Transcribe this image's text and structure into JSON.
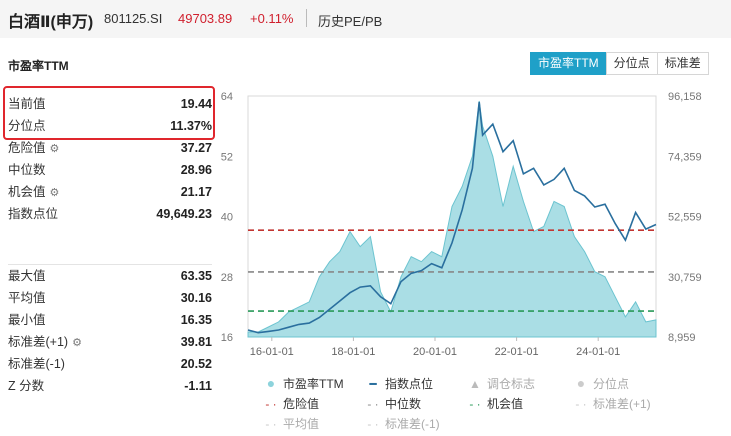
{
  "header": {
    "title": "白酒Ⅱ(申万)",
    "code": "801125.SI",
    "price": "49703.89",
    "change": "+0.11%",
    "mode": "历史PE/PB"
  },
  "chart_title": "市盈率TTM",
  "tabs": [
    "市盈率TTM",
    "分位点",
    "标准差"
  ],
  "stats_top": [
    {
      "label": "当前值",
      "value": "19.44"
    },
    {
      "label": "分位点",
      "value": "11.37%"
    },
    {
      "label": "危险值",
      "value": "37.27",
      "icon": "gear-icon"
    },
    {
      "label": "中位数",
      "value": "28.96"
    },
    {
      "label": "机会值",
      "value": "21.17",
      "icon": "gear-icon"
    },
    {
      "label": "指数点位",
      "value": "49,649.23"
    }
  ],
  "stats_bottom": [
    {
      "label": "最大值",
      "value": "63.35"
    },
    {
      "label": "平均值",
      "value": "30.16"
    },
    {
      "label": "最小值",
      "value": "16.35"
    },
    {
      "label": "标准差(+1)",
      "value": "39.81",
      "icon": "gear-icon"
    },
    {
      "label": "标准差(-1)",
      "value": "20.52"
    },
    {
      "label": "Z 分数",
      "value": "-1.11"
    }
  ],
  "legend": [
    {
      "label": "市盈率TTM",
      "marker": "circle",
      "color": "#8dd3dc",
      "active": true
    },
    {
      "label": "指数点位",
      "marker": "line",
      "color": "#2a6f9e",
      "active": true
    },
    {
      "label": "调仓标志",
      "marker": "triangle",
      "color": "#bbbbbb",
      "active": false
    },
    {
      "label": "分位点",
      "marker": "circle",
      "color": "#cccccc",
      "active": false
    },
    {
      "label": "危险值",
      "marker": "dash",
      "color": "#c23531",
      "active": true
    },
    {
      "label": "中位数",
      "marker": "dash",
      "color": "#888888",
      "active": true
    },
    {
      "label": "机会值",
      "marker": "dash",
      "color": "#2a9a5a",
      "active": true
    },
    {
      "label": "标准差(+1)",
      "marker": "dash",
      "color": "#c8c8c8",
      "active": false
    },
    {
      "label": "平均值",
      "marker": "dash",
      "color": "#c8c8c8",
      "active": false
    },
    {
      "label": "标准差(-1)",
      "marker": "dash",
      "color": "#c8c8c8",
      "active": false
    }
  ],
  "chart_data": {
    "type": "area",
    "title": "市盈率TTM",
    "x_tick_labels": [
      "16-01-01",
      "18-01-01",
      "20-01-01",
      "22-01-01",
      "24-01-01"
    ],
    "left_axis": {
      "ticks": [
        16,
        28,
        40,
        52,
        64
      ],
      "ylim": [
        16,
        64
      ]
    },
    "right_axis": {
      "ticks": [
        "8,959",
        "30,759",
        "52,559",
        "74,359",
        "96,158"
      ],
      "ylim": [
        8959,
        96158
      ]
    },
    "reference_lines": {
      "danger": 37.27,
      "median": 28.96,
      "opportunity": 21.17
    },
    "xlim": [
      "2015-06",
      "2025-06"
    ],
    "series": [
      {
        "name": "市盈率TTM",
        "axis": "left",
        "x": [
          "2015-06",
          "2015-09",
          "2015-12",
          "2016-03",
          "2016-06",
          "2016-09",
          "2016-12",
          "2017-03",
          "2017-06",
          "2017-09",
          "2017-12",
          "2018-03",
          "2018-06",
          "2018-09",
          "2018-12",
          "2019-03",
          "2019-06",
          "2019-09",
          "2019-12",
          "2020-03",
          "2020-06",
          "2020-09",
          "2020-12",
          "2021-02",
          "2021-03",
          "2021-06",
          "2021-09",
          "2021-12",
          "2022-03",
          "2022-06",
          "2022-09",
          "2022-12",
          "2023-03",
          "2023-06",
          "2023-09",
          "2023-12",
          "2024-03",
          "2024-06",
          "2024-09",
          "2024-12",
          "2025-03",
          "2025-06"
        ],
        "values": [
          17,
          17,
          18,
          19,
          21,
          22,
          23,
          28,
          31,
          33,
          37,
          34,
          36,
          25,
          21,
          28,
          32,
          31,
          33,
          32,
          42,
          46,
          52,
          63,
          58,
          52,
          42,
          50,
          43,
          37,
          38,
          43,
          42,
          36,
          33,
          29,
          28,
          24,
          20,
          23,
          19,
          19.4
        ]
      },
      {
        "name": "指数点位",
        "axis": "right",
        "x": [
          "2015-06",
          "2015-09",
          "2015-12",
          "2016-03",
          "2016-06",
          "2016-09",
          "2016-12",
          "2017-03",
          "2017-06",
          "2017-09",
          "2017-12",
          "2018-03",
          "2018-06",
          "2018-09",
          "2018-12",
          "2019-03",
          "2019-06",
          "2019-09",
          "2019-12",
          "2020-03",
          "2020-06",
          "2020-09",
          "2020-12",
          "2021-02",
          "2021-03",
          "2021-06",
          "2021-09",
          "2021-12",
          "2022-03",
          "2022-06",
          "2022-09",
          "2022-12",
          "2023-03",
          "2023-06",
          "2023-09",
          "2023-12",
          "2024-03",
          "2024-06",
          "2024-09",
          "2024-12",
          "2025-03",
          "2025-06"
        ],
        "values": [
          11500,
          10500,
          11000,
          11500,
          12500,
          13500,
          14000,
          16000,
          19000,
          22000,
          25000,
          27000,
          27500,
          23500,
          21000,
          29000,
          32000,
          33000,
          35500,
          34000,
          43000,
          55000,
          70000,
          94000,
          82000,
          86000,
          76000,
          80000,
          68000,
          70000,
          64000,
          66000,
          70000,
          62000,
          60000,
          56000,
          57000,
          50000,
          44000,
          54000,
          48000,
          49649
        ]
      }
    ],
    "grid": false,
    "legend_position": "bottom"
  }
}
